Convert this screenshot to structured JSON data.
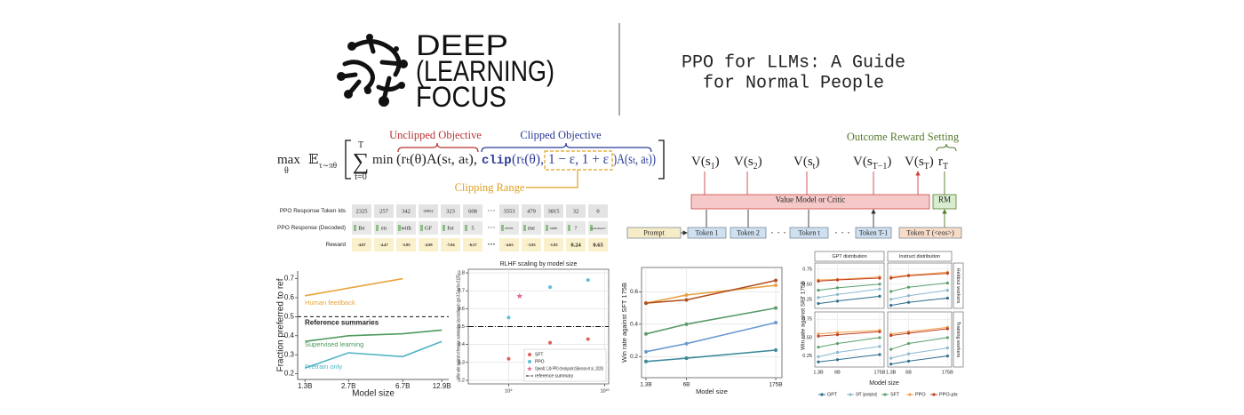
{
  "logo": {
    "lines": [
      "DEEP",
      "(LEARNING)",
      "FOCUS"
    ]
  },
  "title": {
    "lines": [
      "PPO for LLMs: A Guide",
      "for Normal People"
    ]
  },
  "formula": {
    "max": "max",
    "max_sub": "θ",
    "expectation": "𝔼",
    "expectation_sub": "τ∼πθ",
    "sum": "∑",
    "sum_top": "T",
    "sum_bottom": "t=0",
    "min": "min",
    "unclipped": "(rₜ(θ)A(sₜ, aₜ),",
    "clip": "clip",
    "clip_args": "(rₜ(θ),",
    "clip_range": "1 − ε, 1 + ε",
    "clip_tail": ")A(sₜ, aₜ))",
    "unclipped_label": "Unclipped Objective",
    "clipped_label": "Clipped Objective",
    "range_label": "Clipping Range"
  },
  "diagram": {
    "annotation": "Outcome Reward Setting",
    "values": [
      {
        "pre": "V(s",
        "sub": "1",
        "post": ")"
      },
      {
        "pre": "V(s",
        "sub": "2",
        "post": ")"
      },
      {
        "pre": "V(s",
        "sub": "t",
        "post": ")"
      },
      {
        "pre": "V(s",
        "sub": "T−1",
        "post": ")"
      },
      {
        "pre": "V(s",
        "sub": "T",
        "post": ")"
      }
    ],
    "reward": {
      "pre": "r",
      "sub": "T"
    },
    "value_model": "Value Model or Critic",
    "reward_model": "RM",
    "tokens": [
      "Prompt",
      "Token 1",
      "Token 2",
      "· · ·",
      "Token t",
      "· · ·",
      "Token T-1",
      "Token T (<eos>)"
    ]
  },
  "token_table": {
    "rows": [
      {
        "label": "PPO Response Token Ids",
        "cells": [
          2325,
          257,
          342,
          39952,
          323,
          608,
          "···",
          3553,
          479,
          3815,
          32,
          0
        ]
      },
      {
        "label": "PPO Response (Decoded)",
        "cells": [
          "Be",
          "en",
          "with",
          "GF",
          "for",
          "5",
          "···",
          "sever",
          "me",
          "state",
          "?",
          "<undefined>"
        ]
      },
      {
        "label": "Reward",
        "cells": [
          -4.87,
          -4.47,
          -5.85,
          -4.99,
          -7.04,
          -6.57,
          "···",
          -4.63,
          -3.93,
          -1.83,
          0.24,
          0.65
        ]
      }
    ]
  },
  "chart_data": [
    {
      "type": "line",
      "ylabel": "Fraction preferred to ref",
      "xlabel": "Model size",
      "log_x": true,
      "xlim": [
        1.15,
        14.5
      ],
      "xticks": [
        {
          "value": 1.3,
          "label": "1.3B"
        },
        {
          "value": 2.7,
          "label": "2.7B"
        },
        {
          "value": 6.7,
          "label": "6.7B"
        },
        {
          "value": 12.9,
          "label": "12.9B"
        }
      ],
      "ylim": [
        0.17,
        0.74
      ],
      "yticks": [
        0.2,
        0.3,
        0.4,
        0.5,
        0.6,
        0.7
      ],
      "grid": false,
      "markers": false,
      "series": [
        {
          "name": "Human feedback",
          "color": "#e8a33c",
          "x": [
            1.3,
            6.7
          ],
          "values": [
            0.61,
            0.7
          ]
        },
        {
          "name": "Supervised learning",
          "color": "#4e9a5e",
          "x": [
            1.3,
            2.7,
            6.7,
            12.9
          ],
          "values": [
            0.37,
            0.4,
            0.41,
            0.43
          ]
        },
        {
          "name": "Pretrain only",
          "color": "#4fb3c4",
          "x": [
            1.3,
            2.7,
            6.7,
            12.9
          ],
          "values": [
            0.23,
            0.31,
            0.29,
            0.37
          ]
        }
      ],
      "reference": {
        "name": "Reference summaries",
        "value": 0.5,
        "line_style": "dashed"
      }
    },
    {
      "type": "scatter",
      "title": "RLHF scaling by model size",
      "ylabel": "Win rate against reference summaries (according to gpt-3.5-turbo-0125)",
      "log_x": true,
      "xlim": [
        0.38,
        11
      ],
      "xticks": [
        {
          "value": 1,
          "label": "10⁹"
        },
        {
          "value": 10,
          "label": "10¹⁰"
        }
      ],
      "ylim": [
        0.18,
        0.82
      ],
      "yticks": [
        0.2,
        0.3,
        0.4,
        0.5,
        0.6,
        0.7,
        0.8
      ],
      "grid": true,
      "legend": "lower right",
      "series": [
        {
          "name": "SFT",
          "color": "#e0605a",
          "marker": "circle",
          "x": [
            1,
            2.7,
            6.7
          ],
          "values": [
            0.32,
            0.41,
            0.43
          ]
        },
        {
          "name": "PPO",
          "color": "#5bc0de",
          "marker": "circle",
          "x": [
            1,
            2.7,
            6.7
          ],
          "values": [
            0.55,
            0.72,
            0.76
          ]
        },
        {
          "name": "OpenAI 1.3b PPO checkpoint (Stiennon et al., 2020)",
          "color": "#e0708f",
          "marker": "star",
          "x": [
            1.3
          ],
          "values": [
            0.67
          ]
        }
      ],
      "reference": {
        "name": "reference summary",
        "value": 0.5,
        "line_style": "dashdot"
      }
    },
    {
      "type": "line",
      "ylabel": "Win rate against SFT 175B",
      "xlabel": "Model size",
      "log_x": true,
      "x": [
        1.3,
        6,
        175
      ],
      "xlim": [
        1.1,
        221
      ],
      "xticks": [
        {
          "value": 1.3,
          "label": "1.3B"
        },
        {
          "value": 6,
          "label": "6B"
        },
        {
          "value": 175,
          "label": "175B"
        }
      ],
      "ylim": [
        0.07,
        0.75
      ],
      "yticks": [
        0.2,
        0.4,
        0.6
      ],
      "grid": true,
      "markers": true,
      "series": [
        {
          "color": "#e8a040",
          "values": [
            0.53,
            0.58,
            0.64
          ]
        },
        {
          "color": "#b05020",
          "values": [
            0.53,
            0.55,
            0.67
          ]
        },
        {
          "color": "#5a9a6a",
          "values": [
            0.34,
            0.4,
            0.5
          ]
        },
        {
          "color": "#6a9ad0",
          "values": [
            0.23,
            0.28,
            0.41
          ]
        },
        {
          "color": "#3a8a9a",
          "values": [
            0.17,
            0.19,
            0.24
          ]
        }
      ]
    },
    {
      "type": "panel_line",
      "ylabel": "Win rate against SFT 175B",
      "xlabel": "Model size",
      "log_x": true,
      "x": [
        1.3,
        6,
        175
      ],
      "xlim": [
        0.98,
        250
      ],
      "xticks": [
        {
          "value": 1.3,
          "label": "1.3B"
        },
        {
          "value": 6,
          "label": "6B"
        },
        {
          "value": 175,
          "label": "175B"
        }
      ],
      "ylim": [
        0.1,
        0.85
      ],
      "yticks": [
        0.25,
        {
          "value": 0.5,
          "label": "0.50"
        },
        0.75
      ],
      "grid": true,
      "legend": "bottom",
      "column_titles": [
        "GPT distribution",
        "Instruct distribution"
      ],
      "row_titles": [
        "Heldout workers",
        "Training workers"
      ],
      "series": [
        {
          "name": "GPT",
          "color": "#2f6f8f"
        },
        {
          "name": "GPT (prompted)",
          "color": "#8ab8d0"
        },
        {
          "name": "SFT",
          "color": "#5aa06a"
        },
        {
          "name": "PPO",
          "color": "#f0a050"
        },
        {
          "name": "PPO-ptx",
          "color": "#c04020"
        }
      ],
      "panels": [
        {
          "values": [
            [
              0.18,
              0.22,
              0.3
            ],
            [
              0.28,
              0.33,
              0.42
            ],
            [
              0.4,
              0.44,
              0.5
            ],
            [
              0.57,
              0.58,
              0.62
            ],
            [
              0.55,
              0.57,
              0.6
            ]
          ]
        },
        {
          "values": [
            [
              0.15,
              0.2,
              0.27
            ],
            [
              0.25,
              0.31,
              0.4
            ],
            [
              0.38,
              0.45,
              0.52
            ],
            [
              0.62,
              0.65,
              0.7
            ],
            [
              0.6,
              0.64,
              0.68
            ]
          ]
        },
        {
          "values": [
            [
              0.17,
              0.2,
              0.27
            ],
            [
              0.24,
              0.3,
              0.38
            ],
            [
              0.37,
              0.42,
              0.5
            ],
            [
              0.55,
              0.57,
              0.6
            ],
            [
              0.52,
              0.54,
              0.58
            ]
          ]
        },
        {
          "values": [
            [
              0.14,
              0.18,
              0.25
            ],
            [
              0.22,
              0.28,
              0.36
            ],
            [
              0.34,
              0.42,
              0.5
            ],
            [
              0.55,
              0.58,
              0.64
            ],
            [
              0.53,
              0.56,
              0.62
            ]
          ]
        }
      ]
    }
  ]
}
